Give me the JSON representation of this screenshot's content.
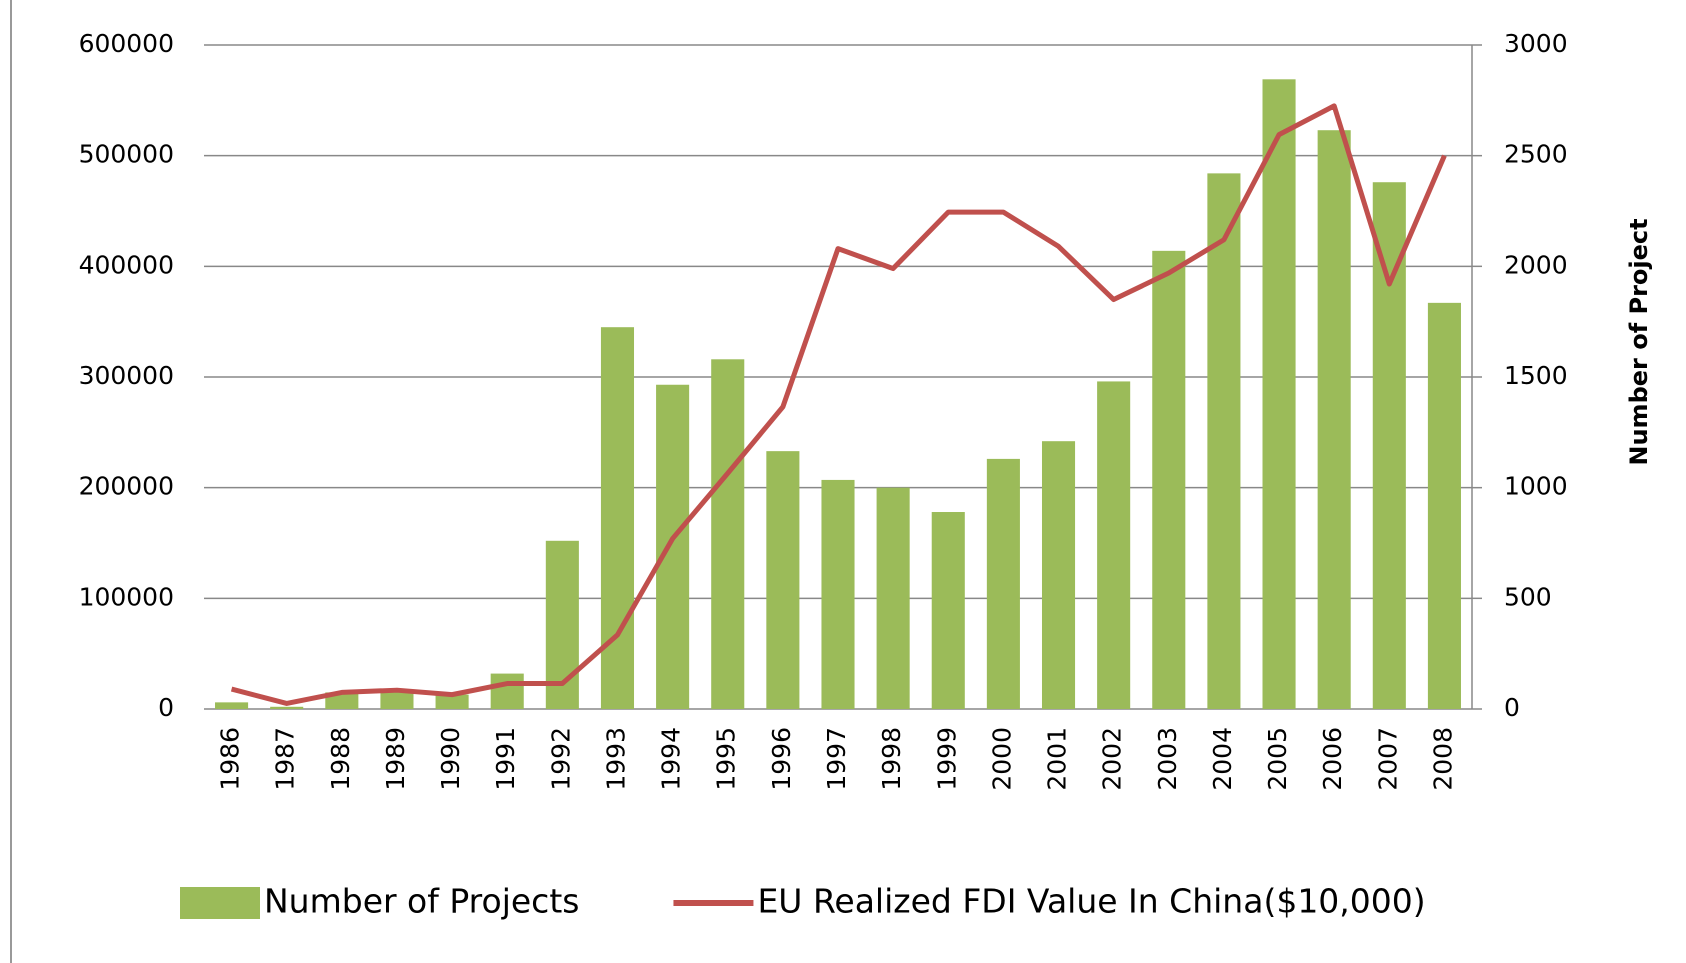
{
  "chart_data": {
    "type": "bar_line",
    "categories": [
      "1986",
      "1987",
      "1988",
      "1989",
      "1990",
      "1991",
      "1992",
      "1993",
      "1994",
      "1995",
      "1996",
      "1997",
      "1998",
      "1999",
      "2000",
      "2001",
      "2002",
      "2003",
      "2004",
      "2005",
      "2006",
      "2007",
      "2008"
    ],
    "series": [
      {
        "name": "Number of Projects",
        "type": "bar",
        "axis": "y2",
        "color": "#9bbb59",
        "values": [
          30,
          10,
          75,
          85,
          65,
          160,
          760,
          1725,
          1465,
          1580,
          1165,
          1035,
          1000,
          890,
          1130,
          1210,
          1480,
          2070,
          2420,
          2845,
          2615,
          2380,
          1835
        ]
      },
      {
        "name": "EU Realized FDI Value In China($10,000)",
        "type": "line",
        "axis": "y",
        "color": "#c0504d",
        "values": [
          18000,
          5000,
          15000,
          17000,
          13000,
          23000,
          23000,
          67000,
          154000,
          213000,
          273000,
          416000,
          398000,
          449000,
          449000,
          418000,
          370000,
          394000,
          424000,
          519000,
          545000,
          384000,
          500000
        ]
      }
    ],
    "ylim": [
      0,
      600000
    ],
    "yticks": [
      0,
      100000,
      200000,
      300000,
      400000,
      500000,
      600000
    ],
    "y2lim": [
      0,
      3000
    ],
    "y2ticks": [
      0,
      500,
      1000,
      1500,
      2000,
      2500,
      3000
    ],
    "y2label": "Number of Project",
    "grid": true
  }
}
